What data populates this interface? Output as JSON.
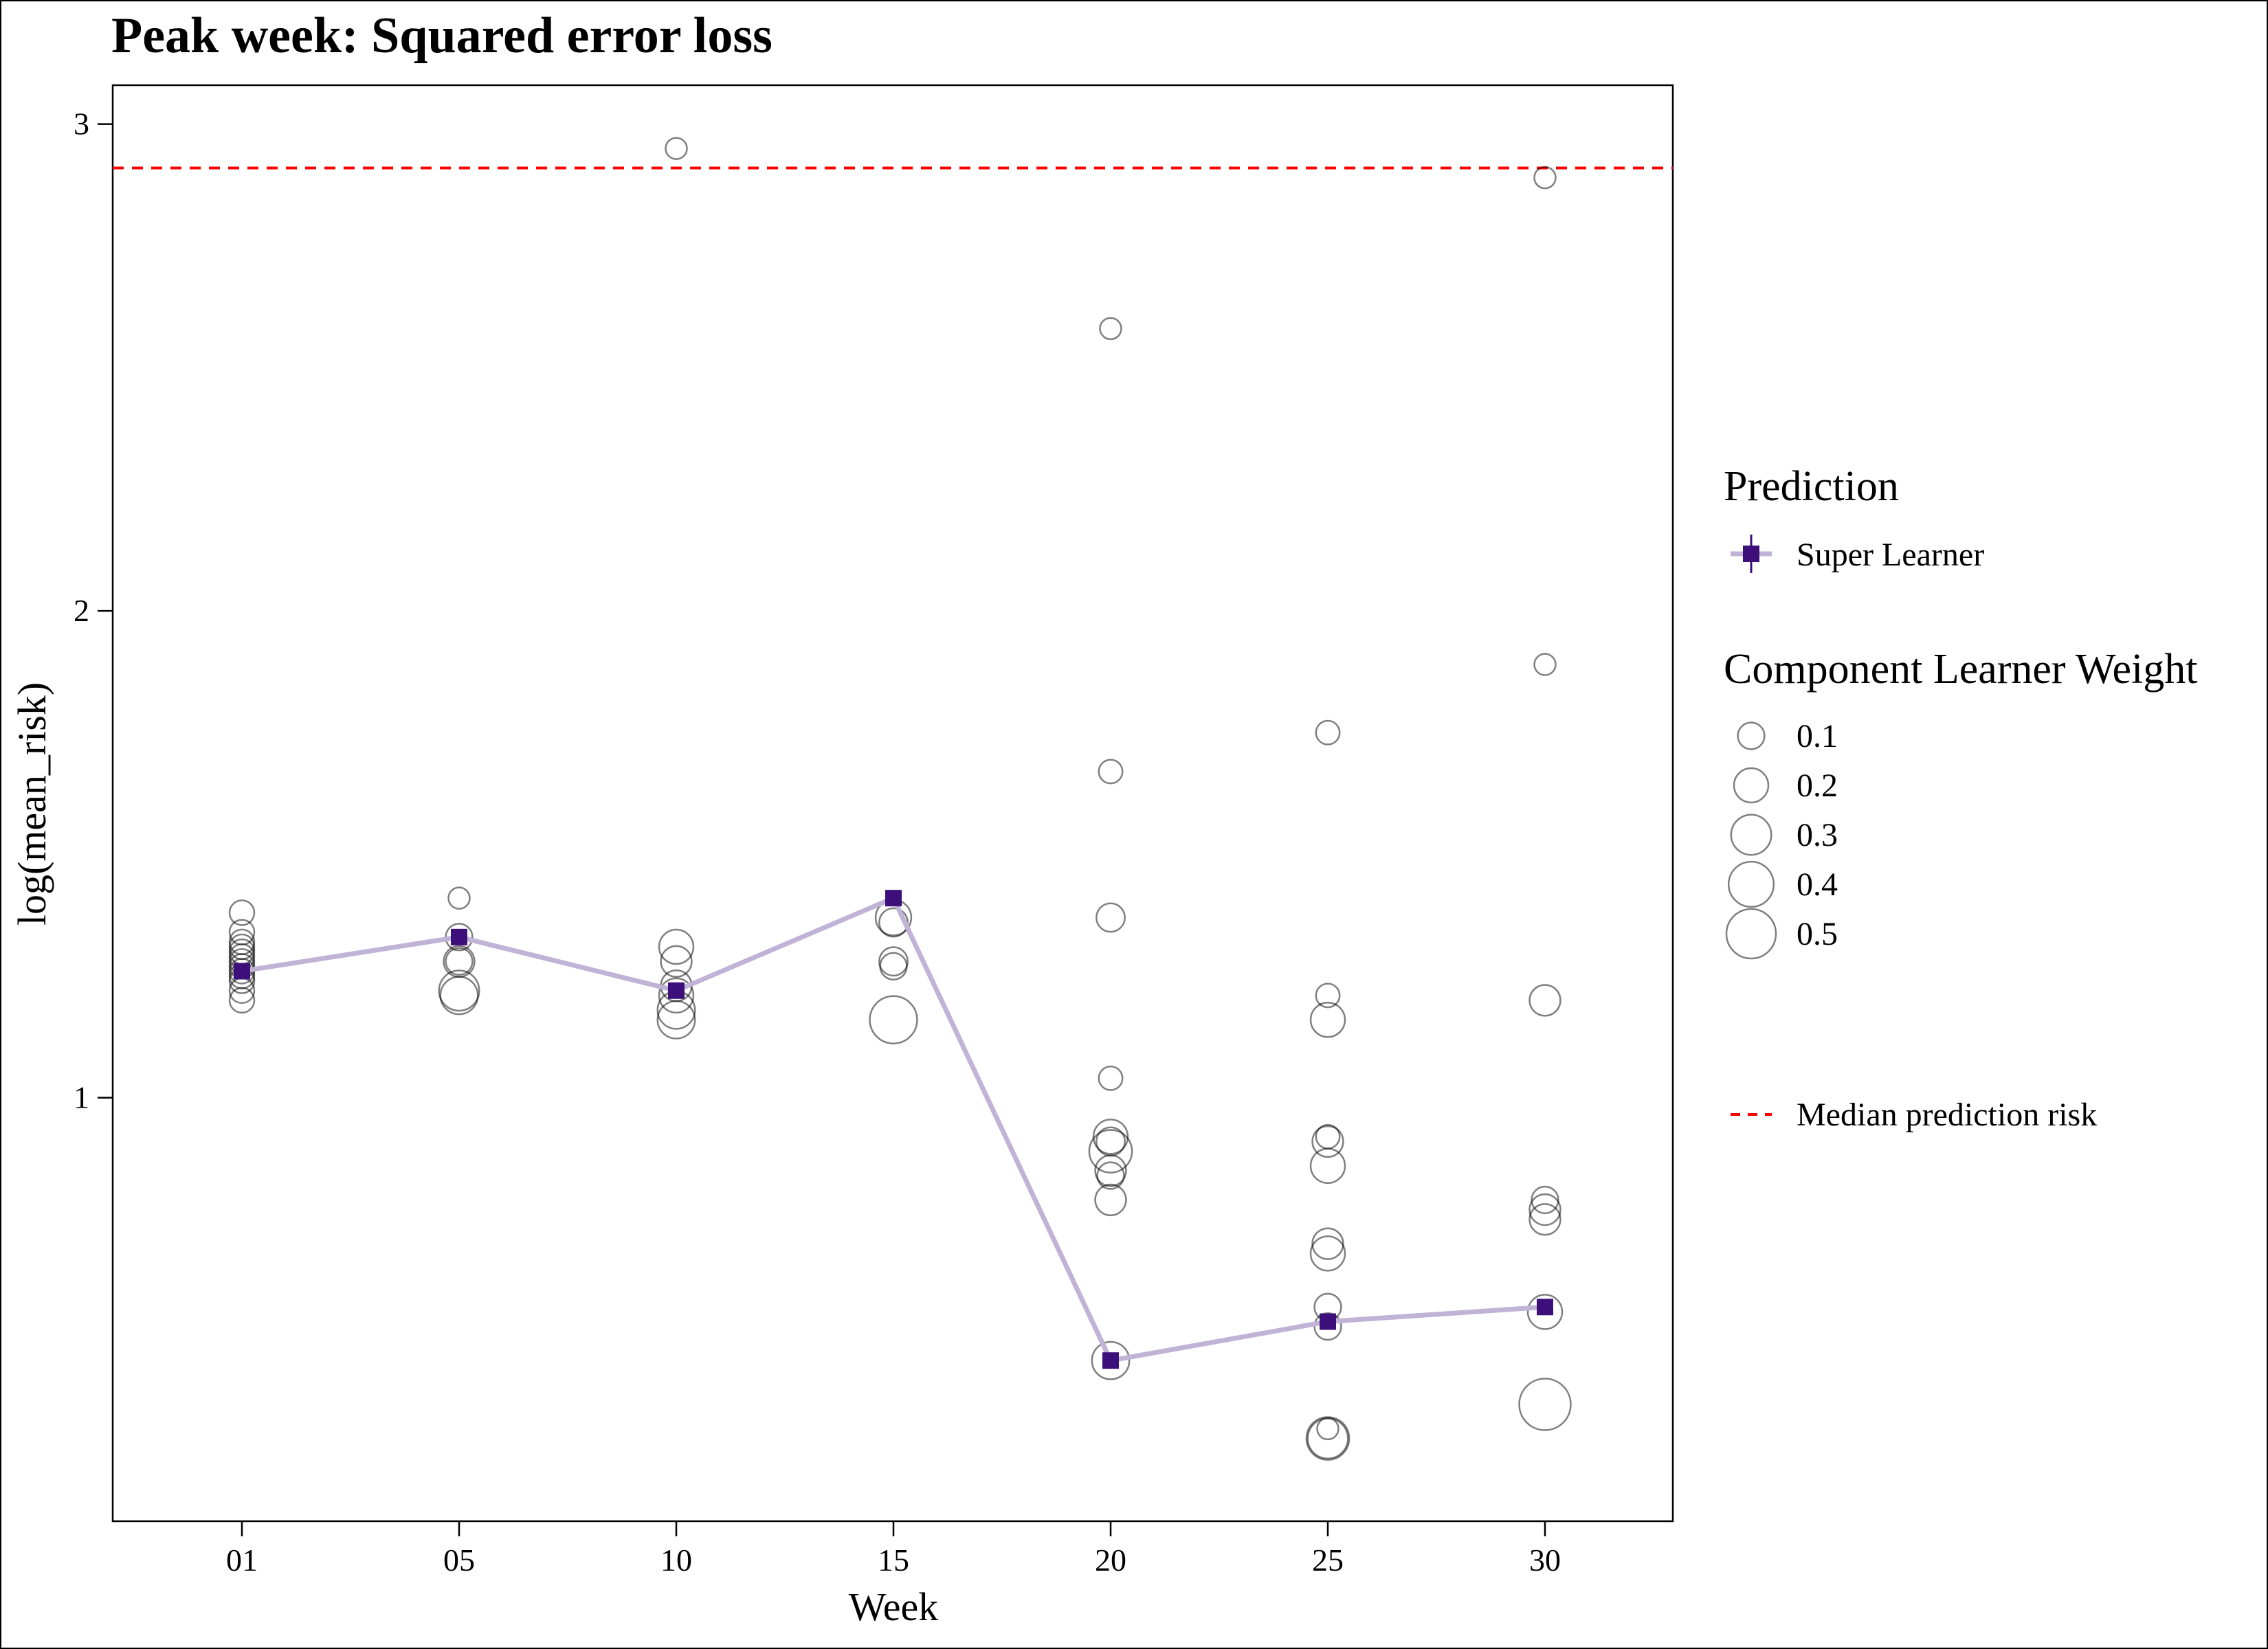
{
  "chart_data": {
    "type": "scatter",
    "title": "Peak week: Squared error loss",
    "xlabel": "Week",
    "ylabel": "log(mean_risk)",
    "x_categories": [
      "01",
      "05",
      "10",
      "15",
      "20",
      "25",
      "30"
    ],
    "y_ticks": [
      1,
      2,
      3
    ],
    "ylim": [
      0.13,
      3.08
    ],
    "reference_line": {
      "name": "Median prediction risk",
      "y": 2.91,
      "color": "#ff0000",
      "style": "dashed"
    },
    "series": [
      {
        "name": "Super Learner",
        "type": "line",
        "line_color": "#c0b3d6",
        "marker_color": "#3d0f7a",
        "points": [
          {
            "x": "01",
            "y": 1.26
          },
          {
            "x": "05",
            "y": 1.33
          },
          {
            "x": "10",
            "y": 1.22
          },
          {
            "x": "15",
            "y": 1.41
          },
          {
            "x": "20",
            "y": 0.46
          },
          {
            "x": "25",
            "y": 0.54
          },
          {
            "x": "30",
            "y": 0.57
          }
        ]
      },
      {
        "name": "Component Learner Weight",
        "type": "bubble",
        "points": [
          {
            "x": "01",
            "y": 1.38,
            "w": 0.08
          },
          {
            "x": "01",
            "y": 1.34,
            "w": 0.08
          },
          {
            "x": "01",
            "y": 1.32,
            "w": 0.08
          },
          {
            "x": "01",
            "y": 1.31,
            "w": 0.08
          },
          {
            "x": "01",
            "y": 1.3,
            "w": 0.08
          },
          {
            "x": "01",
            "y": 1.29,
            "w": 0.08
          },
          {
            "x": "01",
            "y": 1.28,
            "w": 0.08
          },
          {
            "x": "01",
            "y": 1.27,
            "w": 0.08
          },
          {
            "x": "01",
            "y": 1.26,
            "w": 0.08
          },
          {
            "x": "01",
            "y": 1.25,
            "w": 0.08
          },
          {
            "x": "01",
            "y": 1.24,
            "w": 0.08
          },
          {
            "x": "01",
            "y": 1.22,
            "w": 0.08
          },
          {
            "x": "01",
            "y": 1.2,
            "w": 0.08
          },
          {
            "x": "05",
            "y": 1.41,
            "w": 0.05
          },
          {
            "x": "05",
            "y": 1.33,
            "w": 0.1
          },
          {
            "x": "05",
            "y": 1.28,
            "w": 0.15
          },
          {
            "x": "05",
            "y": 1.28,
            "w": 0.1
          },
          {
            "x": "05",
            "y": 1.22,
            "w": 0.3
          },
          {
            "x": "05",
            "y": 1.21,
            "w": 0.25
          },
          {
            "x": "10",
            "y": 2.95,
            "w": 0.05
          },
          {
            "x": "10",
            "y": 1.31,
            "w": 0.2
          },
          {
            "x": "10",
            "y": 1.28,
            "w": 0.15
          },
          {
            "x": "10",
            "y": 1.23,
            "w": 0.15
          },
          {
            "x": "10",
            "y": 1.21,
            "w": 0.2
          },
          {
            "x": "10",
            "y": 1.18,
            "w": 0.25
          },
          {
            "x": "10",
            "y": 1.16,
            "w": 0.25
          },
          {
            "x": "15",
            "y": 1.37,
            "w": 0.22
          },
          {
            "x": "15",
            "y": 1.36,
            "w": 0.12
          },
          {
            "x": "15",
            "y": 1.28,
            "w": 0.12
          },
          {
            "x": "15",
            "y": 1.27,
            "w": 0.1
          },
          {
            "x": "15",
            "y": 1.16,
            "w": 0.45
          },
          {
            "x": "20",
            "y": 2.58,
            "w": 0.05
          },
          {
            "x": "20",
            "y": 1.67,
            "w": 0.07
          },
          {
            "x": "20",
            "y": 1.37,
            "w": 0.12
          },
          {
            "x": "20",
            "y": 1.04,
            "w": 0.07
          },
          {
            "x": "20",
            "y": 0.92,
            "w": 0.2
          },
          {
            "x": "20",
            "y": 0.91,
            "w": 0.12
          },
          {
            "x": "20",
            "y": 0.89,
            "w": 0.35
          },
          {
            "x": "20",
            "y": 0.85,
            "w": 0.15
          },
          {
            "x": "20",
            "y": 0.84,
            "w": 0.1
          },
          {
            "x": "20",
            "y": 0.79,
            "w": 0.15
          },
          {
            "x": "20",
            "y": 0.46,
            "w": 0.25
          },
          {
            "x": "25",
            "y": 1.75,
            "w": 0.07
          },
          {
            "x": "25",
            "y": 1.21,
            "w": 0.07
          },
          {
            "x": "25",
            "y": 1.16,
            "w": 0.2
          },
          {
            "x": "25",
            "y": 0.92,
            "w": 0.07
          },
          {
            "x": "25",
            "y": 0.91,
            "w": 0.15
          },
          {
            "x": "25",
            "y": 0.86,
            "w": 0.2
          },
          {
            "x": "25",
            "y": 0.7,
            "w": 0.15
          },
          {
            "x": "25",
            "y": 0.68,
            "w": 0.2
          },
          {
            "x": "25",
            "y": 0.57,
            "w": 0.1
          },
          {
            "x": "25",
            "y": 0.53,
            "w": 0.1
          },
          {
            "x": "25",
            "y": 0.3,
            "w": 0.35
          },
          {
            "x": "25",
            "y": 0.3,
            "w": 0.3
          },
          {
            "x": "25",
            "y": 0.32,
            "w": 0.05
          },
          {
            "x": "30",
            "y": 2.89,
            "w": 0.05
          },
          {
            "x": "30",
            "y": 1.89,
            "w": 0.05
          },
          {
            "x": "30",
            "y": 1.2,
            "w": 0.15
          },
          {
            "x": "30",
            "y": 0.79,
            "w": 0.1
          },
          {
            "x": "30",
            "y": 0.77,
            "w": 0.15
          },
          {
            "x": "30",
            "y": 0.75,
            "w": 0.15
          },
          {
            "x": "30",
            "y": 0.56,
            "w": 0.2
          },
          {
            "x": "30",
            "y": 0.37,
            "w": 0.55
          }
        ]
      }
    ],
    "legend": {
      "placement": "right",
      "prediction_title": "Prediction",
      "prediction_label": "Super Learner",
      "weight_title": "Component Learner Weight",
      "weight_items": [
        {
          "label": "0.1",
          "w": 0.1
        },
        {
          "label": "0.2",
          "w": 0.2
        },
        {
          "label": "0.3",
          "w": 0.3
        },
        {
          "label": "0.4",
          "w": 0.4
        },
        {
          "label": "0.5",
          "w": 0.5
        }
      ],
      "median_label": "Median prediction risk"
    }
  }
}
